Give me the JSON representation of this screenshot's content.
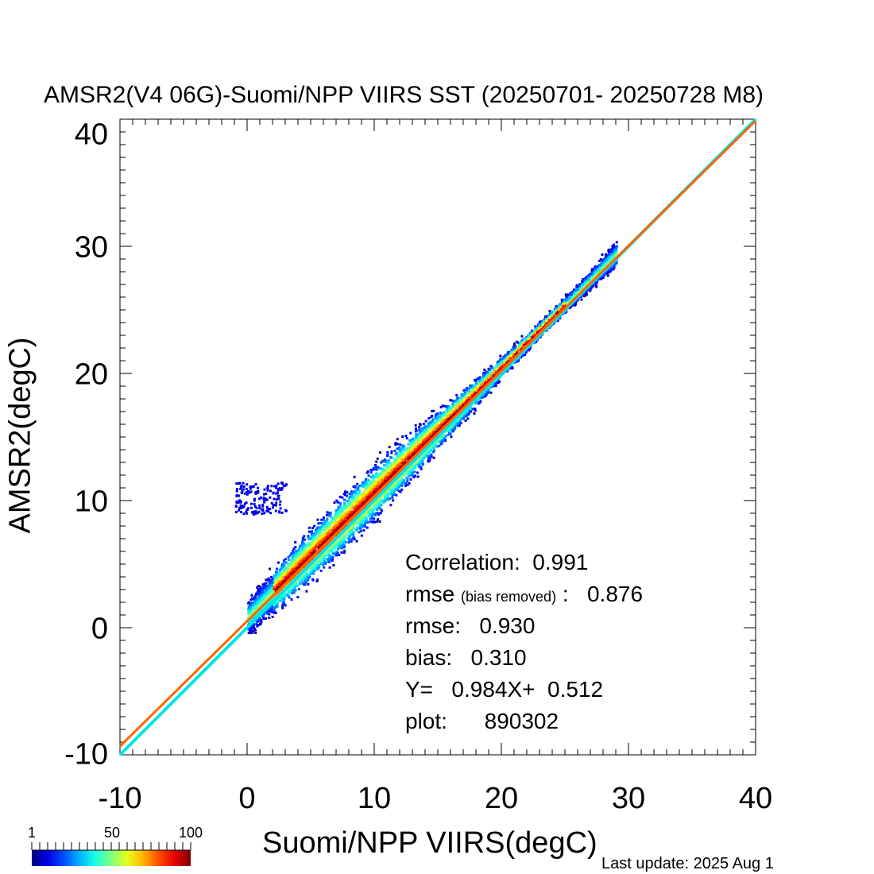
{
  "chart_data": {
    "type": "scatter",
    "title": "AMSR2(V4 06G)-Suomi/NPP VIIRS SST (20250701- 20250728 M8)",
    "xlabel": "Suomi/NPP VIIRS(degC)",
    "ylabel": "AMSR2(degC)",
    "xlim": [
      -10,
      40
    ],
    "ylim": [
      -10,
      40
    ],
    "x_ticks": [
      "-10",
      "0",
      "10",
      "20",
      "30",
      "40"
    ],
    "y_ticks": [
      "-10",
      "0",
      "10",
      "20",
      "30",
      "40"
    ],
    "density_range": [
      1,
      100
    ],
    "colorbar_ticks": [
      "1",
      "50",
      "100"
    ],
    "lines": [
      {
        "type": "one-to-one",
        "slope": 1.0,
        "intercept": 0.0,
        "color": "#00e5e5"
      },
      {
        "type": "regression",
        "slope": 0.984,
        "intercept": 0.512,
        "color": "#ff6600"
      }
    ],
    "stats": {
      "correlation_label": "Correlation:",
      "correlation": "0.991",
      "rmse_br_label": "rmse",
      "rmse_br_note": "(bias removed)",
      "rmse_br_sep": ":",
      "rmse_br": "0.876",
      "rmse_label": "rmse:",
      "rmse": "0.930",
      "bias_label": "bias:",
      "bias": "0.310",
      "fit_label": "Y=",
      "fit": "0.984X+  0.512",
      "plot_label": "plot:",
      "plot": "890302"
    }
  },
  "footer": {
    "last_update": "Last update: 2025 Aug  1"
  }
}
